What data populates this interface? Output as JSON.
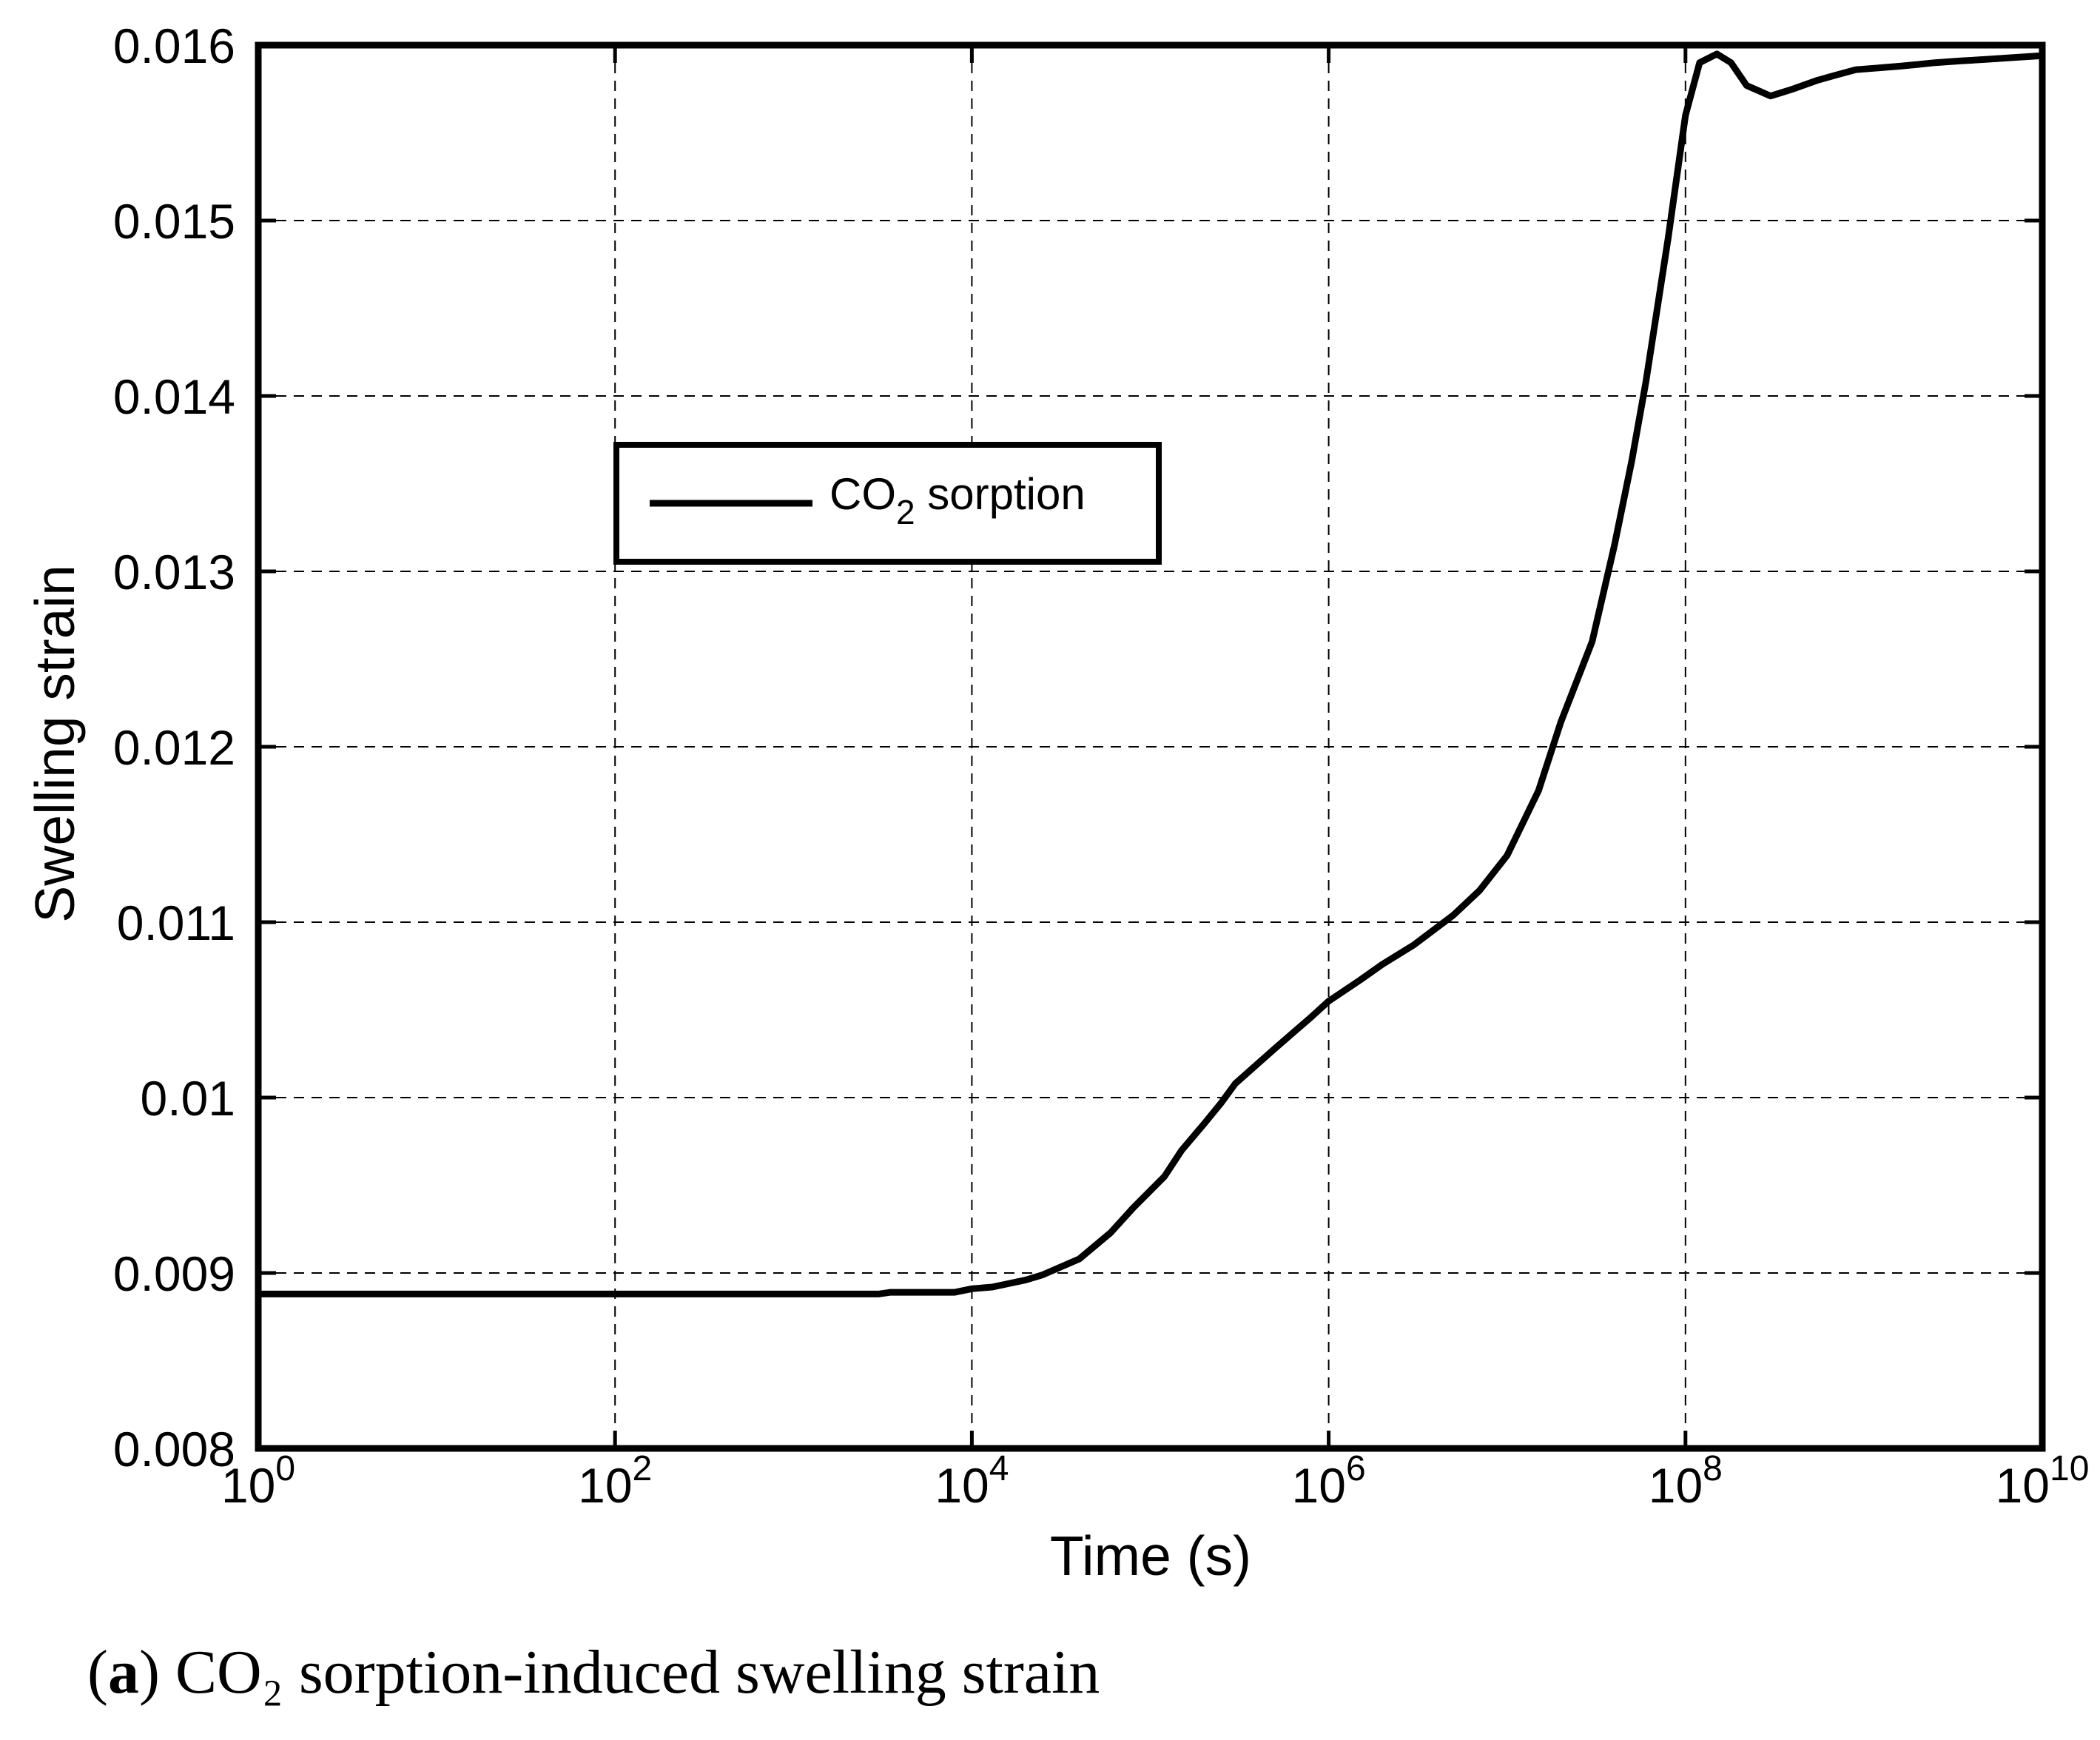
{
  "chart_data": {
    "type": "line",
    "xlabel": "Time (s)",
    "ylabel": "Swelling strain",
    "xscale": "log",
    "xlim": [
      1,
      10000000000
    ],
    "ylim": [
      0.008,
      0.016
    ],
    "grid": true,
    "x_ticks": [
      {
        "value": 1,
        "base": "10",
        "exp": "0"
      },
      {
        "value": 100,
        "base": "10",
        "exp": "2"
      },
      {
        "value": 10000,
        "base": "10",
        "exp": "4"
      },
      {
        "value": 1000000,
        "base": "10",
        "exp": "6"
      },
      {
        "value": 100000000,
        "base": "10",
        "exp": "8"
      },
      {
        "value": 10000000000,
        "base": "10",
        "exp": "10"
      }
    ],
    "y_ticks": [
      {
        "value": 0.008,
        "label": "0.008"
      },
      {
        "value": 0.009,
        "label": "0.009"
      },
      {
        "value": 0.01,
        "label": "0.01"
      },
      {
        "value": 0.011,
        "label": "0.011"
      },
      {
        "value": 0.012,
        "label": "0.012"
      },
      {
        "value": 0.013,
        "label": "0.013"
      },
      {
        "value": 0.014,
        "label": "0.014"
      },
      {
        "value": 0.015,
        "label": "0.015"
      },
      {
        "value": 0.016,
        "label": "0.016"
      }
    ],
    "legend": {
      "placement": "upper-left-center",
      "entries": [
        {
          "base": "CO",
          "sub": "2",
          "rest": " sorption"
        }
      ]
    },
    "series": [
      {
        "name": "CO2 sorption",
        "color": "#000000",
        "x": [
          1,
          3000,
          3500,
          8000,
          10000,
          13000,
          20000,
          25000,
          40000,
          60000,
          80000,
          120000,
          150000,
          200000,
          250000,
          300000,
          500000,
          800000,
          1000000,
          1500000,
          2000000,
          3000000,
          5000000,
          7000000,
          10000000,
          15000000,
          20000000,
          30000000,
          40000000,
          50000000,
          60000000,
          80000000,
          100000000,
          120000000,
          150000000,
          180000000,
          220000000,
          300000000,
          400000000,
          550000000,
          700000000,
          900000000,
          1200000000,
          1600000000,
          2000000000,
          2500000000,
          3500000000,
          5000000000,
          7000000000,
          10000000000
        ],
        "y": [
          0.00888,
          0.00888,
          0.00889,
          0.00889,
          0.00891,
          0.00892,
          0.00896,
          0.00899,
          0.00908,
          0.00923,
          0.00937,
          0.00955,
          0.0097,
          0.00985,
          0.00997,
          0.01008,
          0.01028,
          0.01046,
          0.01055,
          0.01067,
          0.01076,
          0.01087,
          0.01104,
          0.01118,
          0.01138,
          0.01175,
          0.01214,
          0.0126,
          0.01315,
          0.01363,
          0.01408,
          0.0149,
          0.0156,
          0.0159,
          0.01595,
          0.0159,
          0.01577,
          0.01571,
          0.01575,
          0.0158,
          0.01583,
          0.01586,
          0.01587,
          0.01588,
          0.01589,
          0.0159,
          0.01591,
          0.01592,
          0.01593,
          0.01594
        ]
      }
    ]
  },
  "caption": {
    "panel": "a",
    "text": " CO₂ sorption-induced swelling strain"
  }
}
